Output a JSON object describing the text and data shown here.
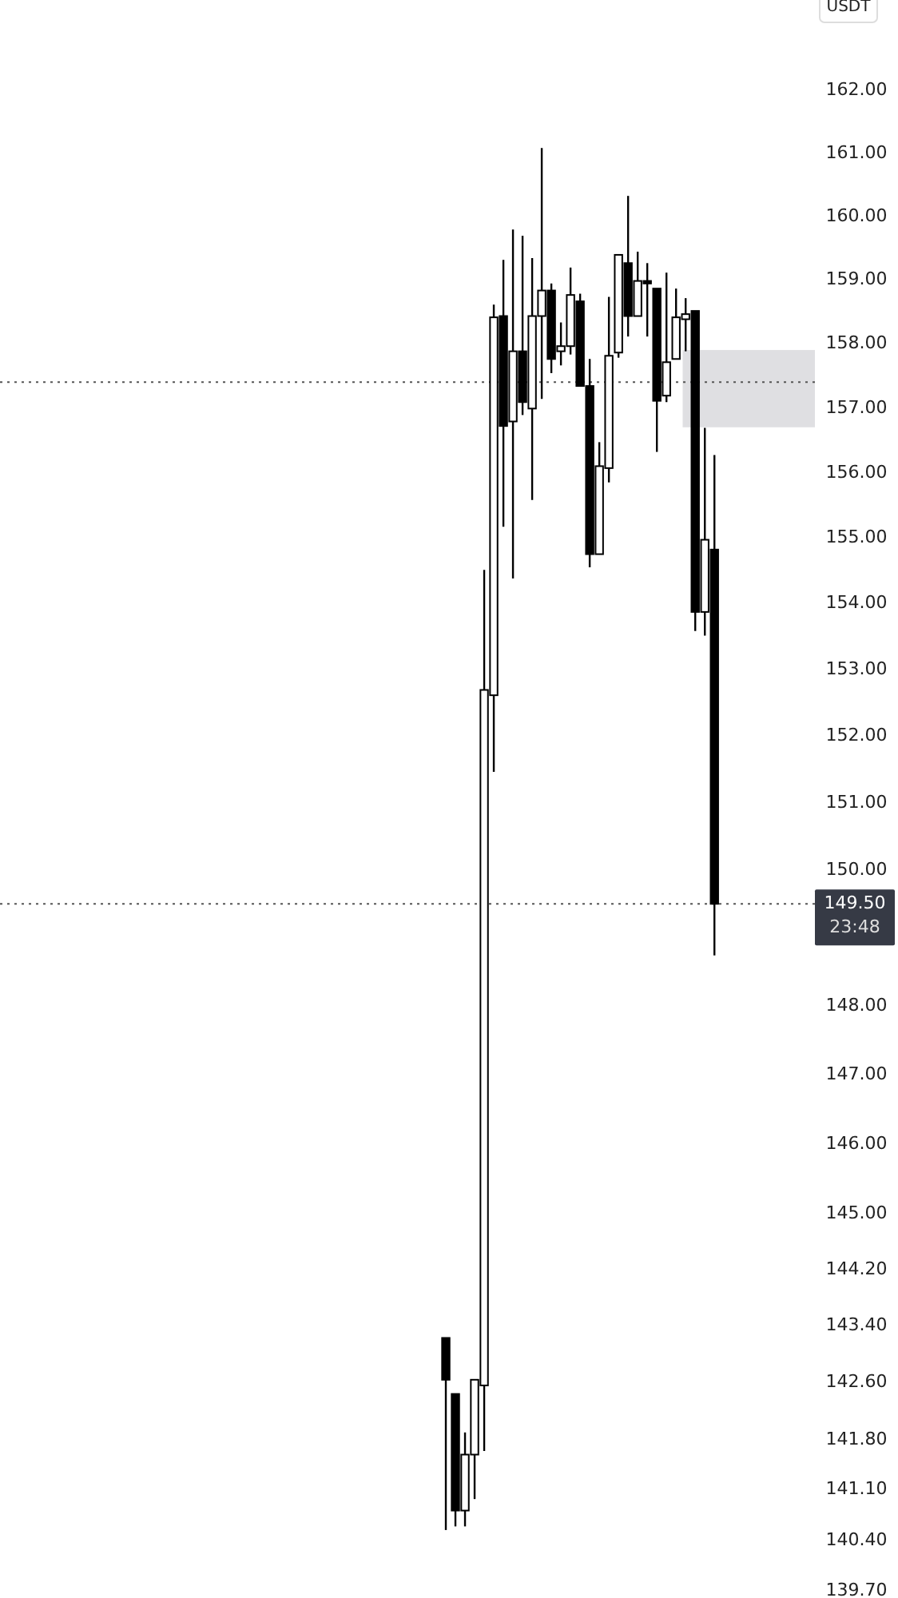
{
  "chart_data": {
    "type": "candlestick",
    "log": true,
    "tick_labels": "y",
    "categories": [
      null,
      null,
      null,
      null,
      null,
      null,
      null,
      null,
      null,
      null,
      null,
      null,
      null,
      null,
      null,
      null,
      null,
      null,
      null,
      null,
      null,
      null,
      null,
      null,
      null,
      null,
      null,
      null,
      null,
      null,
      null,
      null,
      null,
      null,
      null,
      null,
      null,
      null,
      null,
      null,
      null,
      null,
      null,
      null,
      null,
      null,
      null,
      null,
      null,
      null,
      null,
      null,
      null,
      null,
      null,
      null,
      null,
      null,
      null,
      null,
      null,
      null,
      null,
      null,
      null,
      null,
      null,
      null,
      null,
      null,
      null,
      null,
      null,
      null,
      null,
      null,
      null,
      null,
      null,
      null,
      null,
      null,
      null,
      null,
      null
    ],
    "ohlc": [
      null,
      null,
      null,
      null,
      null,
      null,
      null,
      null,
      null,
      null,
      null,
      null,
      null,
      null,
      null,
      null,
      null,
      null,
      null,
      null,
      null,
      null,
      null,
      null,
      null,
      null,
      null,
      null,
      null,
      null,
      null,
      null,
      null,
      null,
      null,
      null,
      null,
      null,
      null,
      null,
      null,
      null,
      null,
      null,
      null,
      null,
      [
        143.23,
        143.23,
        140.54,
        142.64
      ],
      [
        142.44,
        142.44,
        140.59,
        140.81
      ],
      [
        140.81,
        141.9,
        140.59,
        141.59
      ],
      [
        141.59,
        142.64,
        140.97,
        142.64
      ],
      [
        142.56,
        154.51,
        141.64,
        152.69
      ],
      [
        152.61,
        158.61,
        151.46,
        158.41
      ],
      [
        158.43,
        159.31,
        155.17,
        156.72
      ],
      [
        156.79,
        159.79,
        154.38,
        157.88
      ],
      [
        157.88,
        159.69,
        156.89,
        157.09
      ],
      [
        156.99,
        159.34,
        155.58,
        158.43
      ],
      [
        158.43,
        161.08,
        157.14,
        158.83
      ],
      [
        158.83,
        158.94,
        157.54,
        157.76
      ],
      [
        157.88,
        158.33,
        157.66,
        157.96
      ],
      [
        157.96,
        159.19,
        157.83,
        158.76
      ],
      [
        158.66,
        158.78,
        157.34,
        157.34
      ],
      [
        157.34,
        157.76,
        154.55,
        154.75
      ],
      [
        154.75,
        156.47,
        154.75,
        156.1
      ],
      [
        156.07,
        158.73,
        155.85,
        157.81
      ],
      [
        157.86,
        159.39,
        157.78,
        159.39
      ],
      [
        159.26,
        160.32,
        158.11,
        158.43
      ],
      [
        158.43,
        159.44,
        158.43,
        158.98
      ],
      [
        158.98,
        159.26,
        158.11,
        158.94
      ],
      [
        158.86,
        158.86,
        156.32,
        157.11
      ],
      [
        157.19,
        159.11,
        157.09,
        157.71
      ],
      [
        157.76,
        158.86,
        157.76,
        158.41
      ],
      [
        158.38,
        158.71,
        157.88,
        158.46
      ],
      [
        158.51,
        158.51,
        153.58,
        153.87
      ],
      [
        153.87,
        156.69,
        153.51,
        154.97
      ],
      [
        154.82,
        156.27,
        148.74,
        149.5
      ],
      null,
      null,
      null,
      null,
      null,
      null,
      null,
      null,
      null,
      null
    ],
    "ylim": [
      139.6,
      163.45
    ],
    "yticks": [
      {
        "value": 162,
        "label": "162.00"
      },
      {
        "value": 161,
        "label": "161.00"
      },
      {
        "value": 160,
        "label": "160.00"
      },
      {
        "value": 159,
        "label": "159.00"
      },
      {
        "value": 158,
        "label": "158.00"
      },
      {
        "value": 157,
        "label": "157.00"
      },
      {
        "value": 156,
        "label": "156.00"
      },
      {
        "value": 155,
        "label": "155.00"
      },
      {
        "value": 154,
        "label": "154.00"
      },
      {
        "value": 153,
        "label": "153.00"
      },
      {
        "value": 152,
        "label": "152.00"
      },
      {
        "value": 151,
        "label": "151.00"
      },
      {
        "value": 150,
        "label": "150.00"
      },
      {
        "value": 148,
        "label": "148.00"
      },
      {
        "value": 147,
        "label": "147.00"
      },
      {
        "value": 146,
        "label": "146.00"
      },
      {
        "value": 145,
        "label": "145.00"
      },
      {
        "value": 144.2,
        "label": "144.20"
      },
      {
        "value": 143.4,
        "label": "143.40"
      },
      {
        "value": 142.6,
        "label": "142.60"
      },
      {
        "value": 141.8,
        "label": "141.80"
      },
      {
        "value": 141.1,
        "label": "141.10"
      },
      {
        "value": 140.4,
        "label": "140.40"
      },
      {
        "value": 139.7,
        "label": "139.70"
      }
    ],
    "ref_lines": [
      {
        "axis": "y",
        "value": 157.4,
        "color": "#555555",
        "line_style": "dotted"
      },
      {
        "axis": "y",
        "value": 149.5,
        "label": "149.50",
        "color": "#555555",
        "line_style": "dotted"
      }
    ],
    "bands": [
      {
        "axis": "y",
        "from": 156.7,
        "to": 157.9,
        "color": "#dcdcdf"
      }
    ],
    "annotations": [
      "USDT",
      "23:48"
    ]
  }
}
